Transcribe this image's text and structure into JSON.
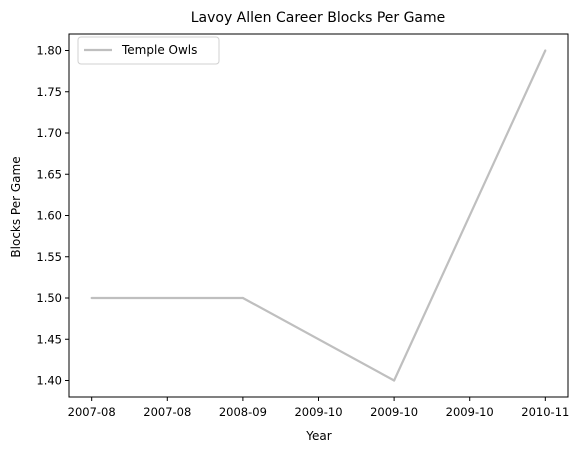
{
  "chart_data": {
    "type": "line",
    "title": "Lavoy Allen Career Blocks Per Game",
    "xlabel": "Year",
    "ylabel": "Blocks Per Game",
    "x_tick_labels": [
      "2007-08",
      "2007-08",
      "2008-09",
      "2009-10",
      "2009-10",
      "2009-10",
      "2010-11"
    ],
    "x_tick_values": [
      0,
      0.5,
      1,
      1.5,
      2,
      2.5,
      3
    ],
    "y_ticks": [
      1.4,
      1.45,
      1.5,
      1.55,
      1.6,
      1.65,
      1.7,
      1.75,
      1.8
    ],
    "ylim": [
      1.38,
      1.82
    ],
    "xlim": [
      -0.15,
      3.15
    ],
    "grid": false,
    "legend_position": "top-left",
    "series": [
      {
        "name": "Temple Owls",
        "color": "#bfbfbf",
        "x": [
          0,
          1,
          2,
          3
        ],
        "values": [
          1.5,
          1.5,
          1.4,
          1.8
        ]
      }
    ]
  }
}
